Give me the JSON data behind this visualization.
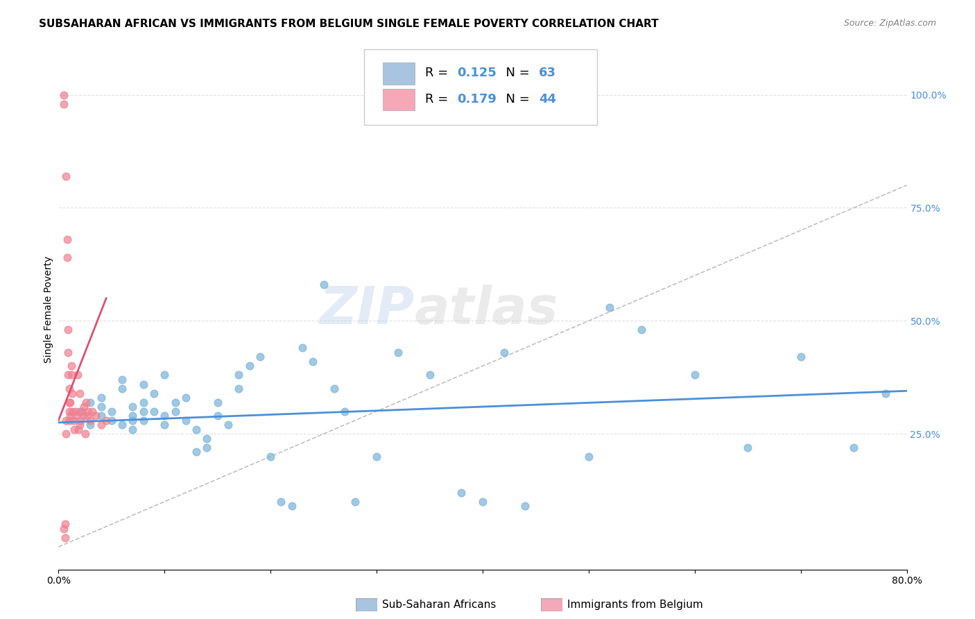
{
  "title": "SUBSAHARAN AFRICAN VS IMMIGRANTS FROM BELGIUM SINGLE FEMALE POVERTY CORRELATION CHART",
  "source": "Source: ZipAtlas.com",
  "ylabel": "Single Female Poverty",
  "legend1_color": "#a8c4e0",
  "legend2_color": "#f4a8b8",
  "blue_dot_color": "#7ab3d9",
  "pink_dot_color": "#f08090",
  "blue_line_color": "#4a90d9",
  "pink_line_color": "#e05070",
  "ref_line_color": "#c0c0c0",
  "grid_color": "#e0e0e0",
  "xlim": [
    0.0,
    0.8
  ],
  "ylim": [
    -0.05,
    1.1
  ],
  "blue_scatter_x": [
    0.02,
    0.03,
    0.03,
    0.04,
    0.04,
    0.04,
    0.05,
    0.05,
    0.06,
    0.06,
    0.06,
    0.07,
    0.07,
    0.07,
    0.07,
    0.08,
    0.08,
    0.08,
    0.08,
    0.09,
    0.09,
    0.1,
    0.1,
    0.1,
    0.11,
    0.11,
    0.12,
    0.12,
    0.13,
    0.13,
    0.14,
    0.14,
    0.15,
    0.15,
    0.16,
    0.17,
    0.17,
    0.18,
    0.19,
    0.2,
    0.21,
    0.22,
    0.23,
    0.24,
    0.25,
    0.26,
    0.27,
    0.28,
    0.3,
    0.32,
    0.35,
    0.38,
    0.4,
    0.42,
    0.44,
    0.5,
    0.52,
    0.55,
    0.6,
    0.65,
    0.7,
    0.75,
    0.78
  ],
  "blue_scatter_y": [
    0.3,
    0.27,
    0.32,
    0.29,
    0.31,
    0.33,
    0.28,
    0.3,
    0.27,
    0.35,
    0.37,
    0.29,
    0.31,
    0.28,
    0.26,
    0.32,
    0.3,
    0.28,
    0.36,
    0.3,
    0.34,
    0.27,
    0.29,
    0.38,
    0.32,
    0.3,
    0.28,
    0.33,
    0.26,
    0.21,
    0.24,
    0.22,
    0.32,
    0.29,
    0.27,
    0.35,
    0.38,
    0.4,
    0.42,
    0.2,
    0.1,
    0.09,
    0.44,
    0.41,
    0.58,
    0.35,
    0.3,
    0.1,
    0.2,
    0.43,
    0.38,
    0.12,
    0.1,
    0.43,
    0.09,
    0.2,
    0.53,
    0.48,
    0.38,
    0.22,
    0.42,
    0.22,
    0.34
  ],
  "pink_scatter_x": [
    0.005,
    0.005,
    0.005,
    0.006,
    0.006,
    0.007,
    0.007,
    0.007,
    0.008,
    0.008,
    0.009,
    0.009,
    0.009,
    0.01,
    0.01,
    0.01,
    0.01,
    0.011,
    0.011,
    0.012,
    0.012,
    0.013,
    0.013,
    0.014,
    0.015,
    0.016,
    0.017,
    0.018,
    0.019,
    0.02,
    0.02,
    0.021,
    0.022,
    0.023,
    0.024,
    0.025,
    0.026,
    0.027,
    0.028,
    0.03,
    0.032,
    0.035,
    0.04,
    0.045
  ],
  "pink_scatter_y": [
    1.0,
    0.98,
    0.04,
    0.05,
    0.02,
    0.82,
    0.28,
    0.25,
    0.68,
    0.64,
    0.48,
    0.43,
    0.38,
    0.35,
    0.32,
    0.3,
    0.28,
    0.32,
    0.29,
    0.4,
    0.38,
    0.34,
    0.3,
    0.28,
    0.26,
    0.3,
    0.29,
    0.38,
    0.26,
    0.27,
    0.34,
    0.28,
    0.3,
    0.29,
    0.31,
    0.25,
    0.32,
    0.29,
    0.3,
    0.28,
    0.3,
    0.29,
    0.27,
    0.28
  ],
  "blue_trend_x": [
    0.0,
    0.8
  ],
  "blue_trend_y": [
    0.275,
    0.345
  ],
  "pink_trend_x": [
    0.0,
    0.045
  ],
  "pink_trend_y": [
    0.28,
    0.55
  ],
  "ref_line_x": [
    0.0,
    0.8
  ],
  "ref_line_y": [
    0.0,
    0.8
  ],
  "watermark_zip": "ZIP",
  "watermark_atlas": "atlas",
  "bottom_labels": [
    "Sub-Saharan Africans",
    "Immigrants from Belgium"
  ],
  "title_fontsize": 11,
  "axis_label_fontsize": 10,
  "tick_fontsize": 10,
  "legend_R1": "0.125",
  "legend_N1": "63",
  "legend_R2": "0.179",
  "legend_N2": "44"
}
